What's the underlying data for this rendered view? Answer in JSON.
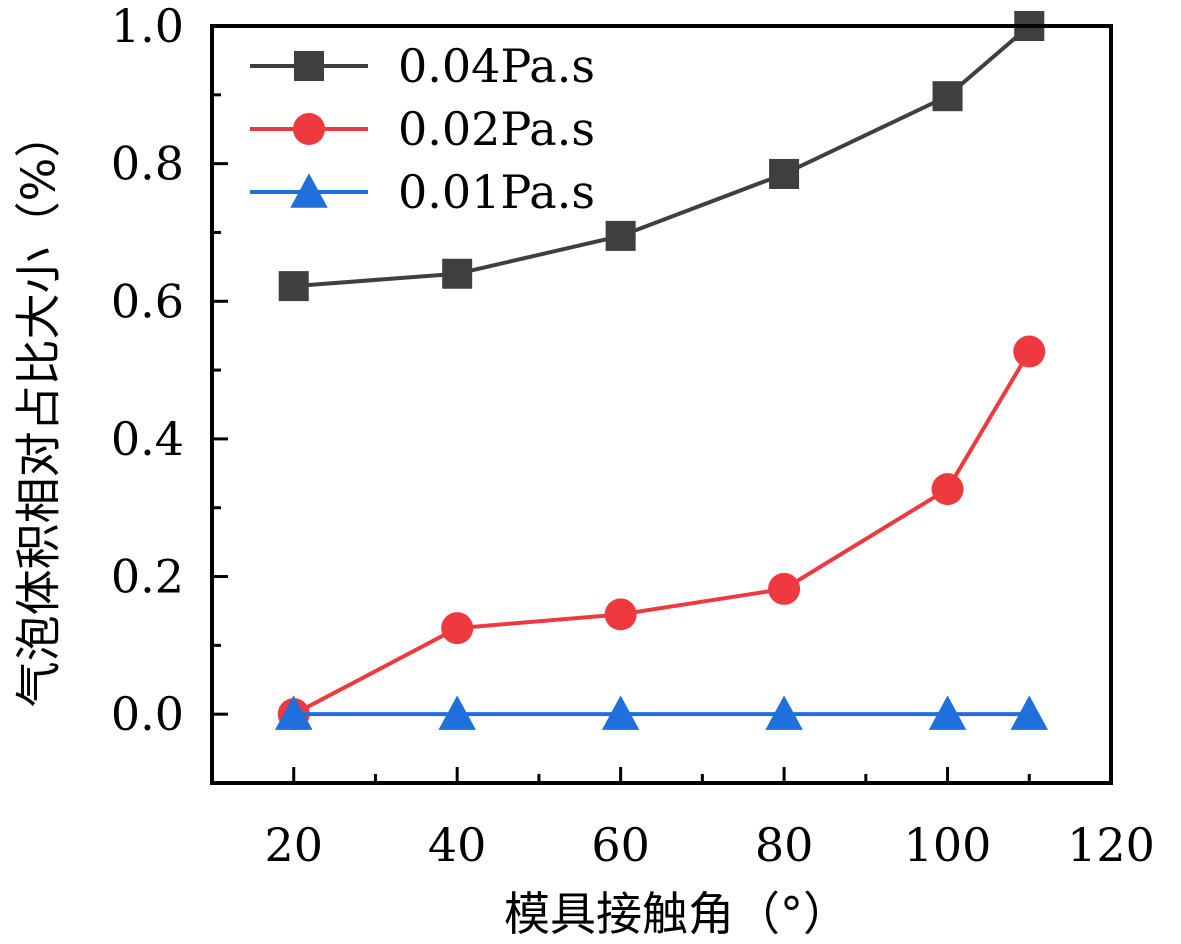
{
  "chart_data": {
    "type": "line",
    "title": "",
    "xlabel": "模具接触角（°）",
    "ylabel": "气泡体积相对占比大小（%）",
    "xlim": [
      10,
      120
    ],
    "ylim": [
      -0.1,
      1.0
    ],
    "xticks": [
      20,
      40,
      60,
      80,
      100,
      120
    ],
    "xtick_labels": [
      "20",
      "40",
      "60",
      "80",
      "100",
      "120"
    ],
    "yticks": [
      0.0,
      0.2,
      0.4,
      0.6,
      0.8,
      1.0
    ],
    "ytick_labels": [
      "0.0",
      "0.2",
      "0.4",
      "0.6",
      "0.8",
      "1.0"
    ],
    "grid": false,
    "legend_position": "top-left",
    "x": [
      20,
      40,
      60,
      80,
      100,
      110
    ],
    "series": [
      {
        "name": "0.04Pa.s",
        "color": "#3f3f3f",
        "marker": "square",
        "values": [
          0.622,
          0.64,
          0.695,
          0.785,
          0.898,
          1.0
        ]
      },
      {
        "name": "0.02Pa.s",
        "color": "#ee3a3f",
        "marker": "circle",
        "values": [
          0.0,
          0.125,
          0.145,
          0.182,
          0.327,
          0.527
        ]
      },
      {
        "name": "0.01Pa.s",
        "color": "#1f6fdc",
        "marker": "triangle",
        "values": [
          0.0,
          0.0,
          0.0,
          0.0,
          0.0,
          0.0
        ]
      }
    ]
  }
}
